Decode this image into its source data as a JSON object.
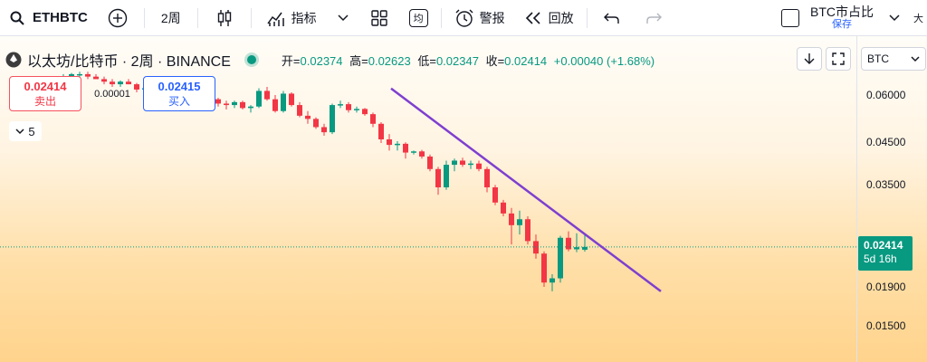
{
  "toolbar": {
    "symbol": "ETHBTC",
    "interval": "2周",
    "indicators_label": "指标",
    "avg_label": "均",
    "alert_label": "警报",
    "replay_label": "回放",
    "compare_label": "BTC市占比",
    "save_label": "保存",
    "more_label": "大"
  },
  "legend": {
    "title": "以太坊/比特币 · 2周 · BINANCE",
    "open_k": "开=",
    "open_v": "0.02374",
    "high_k": "高=",
    "high_v": "0.02623",
    "low_k": "低=",
    "low_v": "0.02347",
    "close_k": "收=",
    "close_v": "0.02414",
    "change": "+0.00040 (+1.68%)"
  },
  "trade": {
    "sell_price": "0.02414",
    "sell_label": "卖出",
    "spread": "0.00001",
    "buy_price": "0.02415",
    "buy_label": "买入",
    "collapse_count": "5"
  },
  "scale": {
    "currency": "BTC",
    "ticks": [
      "0.06000",
      "0.04500",
      "0.03500",
      "0.01900",
      "0.01500"
    ],
    "last_price": "0.02414",
    "countdown": "5d 16h"
  },
  "colors": {
    "up": "#089981",
    "down": "#f23645",
    "trend": "#7e3fd0"
  },
  "chart_data": {
    "type": "candlestick",
    "trendline": {
      "from_price": 0.0624,
      "to_price": 0.0185
    },
    "candles": [
      [
        0.067,
        0.068,
        0.066,
        0.067
      ],
      [
        0.067,
        0.0685,
        0.066,
        0.068
      ],
      [
        0.068,
        0.069,
        0.067,
        0.068
      ],
      [
        0.068,
        0.069,
        0.066,
        0.067
      ],
      [
        0.067,
        0.068,
        0.066,
        0.066
      ],
      [
        0.066,
        0.067,
        0.064,
        0.065
      ],
      [
        0.065,
        0.066,
        0.063,
        0.064
      ],
      [
        0.064,
        0.0655,
        0.063,
        0.065
      ],
      [
        0.065,
        0.066,
        0.064,
        0.064
      ],
      [
        0.064,
        0.0645,
        0.061,
        0.062
      ],
      [
        0.062,
        0.063,
        0.061,
        0.0625
      ],
      [
        0.0625,
        0.063,
        0.061,
        0.0615
      ],
      [
        0.0615,
        0.062,
        0.0605,
        0.0612
      ],
      [
        0.0612,
        0.0615,
        0.0605,
        0.0608
      ],
      [
        0.0608,
        0.0612,
        0.06,
        0.061
      ],
      [
        0.061,
        0.0615,
        0.0605,
        0.0609
      ],
      [
        0.0609,
        0.061,
        0.0595,
        0.0603
      ],
      [
        0.0603,
        0.0605,
        0.0585,
        0.059
      ],
      [
        0.059,
        0.06,
        0.058,
        0.0585
      ],
      [
        0.0585,
        0.059,
        0.056,
        0.057
      ],
      [
        0.057,
        0.058,
        0.055,
        0.0565
      ],
      [
        0.0565,
        0.058,
        0.0555,
        0.0575
      ],
      [
        0.0575,
        0.058,
        0.055,
        0.0555
      ],
      [
        0.0555,
        0.0565,
        0.054,
        0.056
      ],
      [
        0.056,
        0.0625,
        0.0555,
        0.0615
      ],
      [
        0.0615,
        0.063,
        0.058,
        0.0585
      ],
      [
        0.0585,
        0.06,
        0.054,
        0.0545
      ],
      [
        0.0545,
        0.0615,
        0.054,
        0.0605
      ],
      [
        0.0605,
        0.061,
        0.056,
        0.0565
      ],
      [
        0.0565,
        0.0575,
        0.0525,
        0.053
      ],
      [
        0.053,
        0.0545,
        0.0505,
        0.052
      ],
      [
        0.052,
        0.0525,
        0.049,
        0.0495
      ],
      [
        0.0495,
        0.0505,
        0.047,
        0.048
      ],
      [
        0.048,
        0.057,
        0.0475,
        0.0565
      ],
      [
        0.0565,
        0.058,
        0.0555,
        0.0568
      ],
      [
        0.0568,
        0.0575,
        0.054,
        0.0548
      ],
      [
        0.0548,
        0.056,
        0.054,
        0.0552
      ],
      [
        0.0552,
        0.0555,
        0.053,
        0.0535
      ],
      [
        0.0535,
        0.054,
        0.0495,
        0.0505
      ],
      [
        0.0505,
        0.051,
        0.045,
        0.046
      ],
      [
        0.046,
        0.0475,
        0.043,
        0.0445
      ],
      [
        0.0445,
        0.0455,
        0.043,
        0.0448
      ],
      [
        0.0448,
        0.0452,
        0.041,
        0.0425
      ],
      [
        0.0425,
        0.043,
        0.042,
        0.0428
      ],
      [
        0.0428,
        0.0432,
        0.041,
        0.0415
      ],
      [
        0.0415,
        0.042,
        0.038,
        0.0385
      ],
      [
        0.0385,
        0.039,
        0.033,
        0.0345
      ],
      [
        0.0345,
        0.0405,
        0.034,
        0.0395
      ],
      [
        0.0395,
        0.041,
        0.038,
        0.0405
      ],
      [
        0.0405,
        0.0412,
        0.039,
        0.0395
      ],
      [
        0.0395,
        0.0405,
        0.0385,
        0.0398
      ],
      [
        0.0398,
        0.0405,
        0.038,
        0.0385
      ],
      [
        0.0385,
        0.039,
        0.0335,
        0.0345
      ],
      [
        0.0345,
        0.035,
        0.031,
        0.0315
      ],
      [
        0.0315,
        0.032,
        0.029,
        0.0295
      ],
      [
        0.0295,
        0.0305,
        0.0245,
        0.0275
      ],
      [
        0.0275,
        0.03,
        0.026,
        0.0285
      ],
      [
        0.0285,
        0.029,
        0.0245,
        0.025
      ],
      [
        0.025,
        0.026,
        0.0225,
        0.0232
      ],
      [
        0.0232,
        0.0235,
        0.019,
        0.0195
      ],
      [
        0.0195,
        0.0205,
        0.0185,
        0.02
      ],
      [
        0.02,
        0.0258,
        0.0195,
        0.0255
      ],
      [
        0.0255,
        0.0265,
        0.0235,
        0.0238
      ],
      [
        0.0238,
        0.0262,
        0.0234,
        0.0241
      ],
      [
        0.02374,
        0.02623,
        0.02347,
        0.02414
      ]
    ]
  }
}
